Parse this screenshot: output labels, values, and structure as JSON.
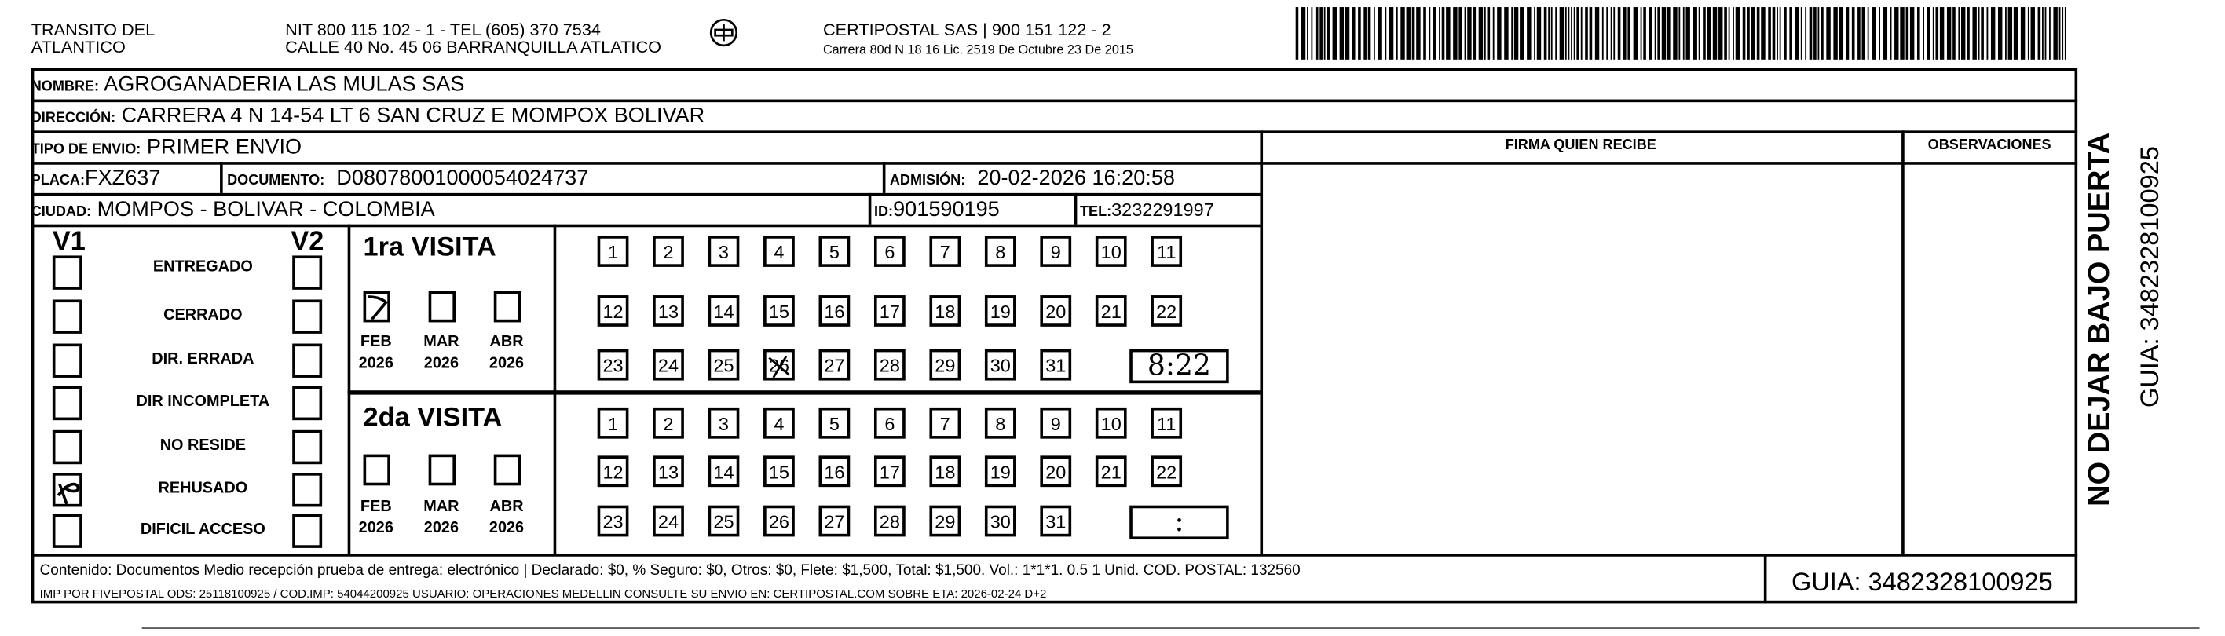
{
  "header": {
    "issuer_line1": "TRANSITO DEL",
    "issuer_line2": "ATLANTICO",
    "nit_line": "NIT 800 115 102 - 1 - TEL (605) 370 7534",
    "address_line": "CALLE 40 No. 45 06 BARRANQUILLA ATLATICO",
    "logo_text": "CERTIPOSTAL",
    "carrier_line": "CERTIPOSTAL SAS | 900 151 122 - 2",
    "carrier_license": "Carrera 80d N 18 16  Lic. 2519 De Octubre 23 De 2015"
  },
  "recipient": {
    "nombre_label": "NOMBRE:",
    "nombre": "AGROGANADERIA LAS MULAS SAS",
    "direccion_label": "DIRECCIÓN:",
    "direccion": "CARRERA 4 N 14-54 LT 6 SAN CRUZ E MOMPOX BOLIVAR",
    "tipo_label": "TIPO DE ENVIO:",
    "tipo": "PRIMER ENVIO",
    "placa_label": "PLACA:",
    "placa": "FXZ637",
    "documento_label": "DOCUMENTO:",
    "documento": "D08078001000054024737",
    "admision_label": "ADMISIÓN:",
    "admision": "20-02-2026 16:20:58",
    "ciudad_label": "CIUDAD:",
    "ciudad": "MOMPOS - BOLIVAR - COLOMBIA",
    "id_label": "ID:",
    "id": "901590195",
    "tel_label": "TEL:",
    "tel": "3232291997"
  },
  "right": {
    "firma_label": "FIRMA QUIEN RECIBE",
    "observaciones_label": "OBSERVACIONES"
  },
  "status": {
    "v1_label": "V1",
    "v2_label": "V2",
    "items": [
      "ENTREGADO",
      "CERRADO",
      "DIR. ERRADA",
      "DIR INCOMPLETA",
      "NO RESIDE",
      "REHUSADO",
      "DIFICIL ACCESO"
    ],
    "v1_checked": "REHUSADO"
  },
  "visits": [
    {
      "title": "1ra VISITA",
      "months": [
        {
          "m": "FEB",
          "y": "2026",
          "checked": true
        },
        {
          "m": "MAR",
          "y": "2026",
          "checked": false
        },
        {
          "m": "ABR",
          "y": "2026",
          "checked": false
        }
      ],
      "marked_day": 26,
      "time": "8:22"
    },
    {
      "title": "2da VISITA",
      "months": [
        {
          "m": "FEB",
          "y": "2026",
          "checked": false
        },
        {
          "m": "MAR",
          "y": "2026",
          "checked": false
        },
        {
          "m": "ABR",
          "y": "2026",
          "checked": false
        }
      ],
      "marked_day": null,
      "time": ":"
    }
  ],
  "footer": {
    "contenido": "Contenido: Documentos Medio recepción prueba de entrega: electrónico | Declarado: $0, % Seguro: $0, Otros: $0, Flete: $1,500, Total: $1,500. Vol.: 1*1*1. 0.5  1 Unid. COD. POSTAL: 132560",
    "imp": "IMP POR FIVEPOSTAL ODS: 25118100925 / COD.IMP: 54044200925 USUARIO: OPERACIONES MEDELLIN CONSULTE SU ENVIO EN: CERTIPOSTAL.COM SOBRE ETA: 2026-02-24 D+2",
    "guia": "GUIA: 3482328100925"
  },
  "side": {
    "warning": "NO DEJAR BAJO PUERTA",
    "guia": "GUIA: 3482328100925"
  }
}
